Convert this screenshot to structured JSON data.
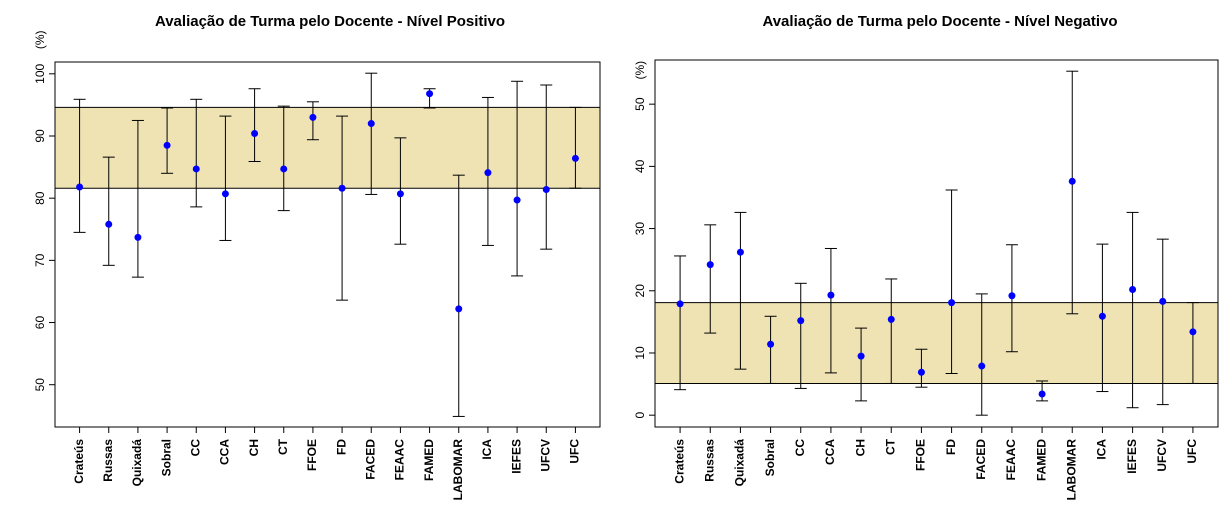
{
  "chart_data": [
    {
      "type": "errorbar",
      "title": "Avaliação de Turma pelo Docente - Nível Positivo",
      "ylabel": "(%)",
      "categories": [
        "Crateús",
        "Russas",
        "Quixadá",
        "Sobral",
        "CC",
        "CCA",
        "CH",
        "CT",
        "FFOE",
        "FD",
        "FACED",
        "FEAAC",
        "FAMED",
        "LABOMAR",
        "ICA",
        "IEFES",
        "UFCV",
        "UFC"
      ],
      "values": [
        81.8,
        75.8,
        73.7,
        88.5,
        84.7,
        80.7,
        90.4,
        84.7,
        93.0,
        81.6,
        92.0,
        80.7,
        96.8,
        62.2,
        84.1,
        79.7,
        81.4,
        86.4
      ],
      "lower": [
        74.5,
        69.2,
        67.3,
        84.0,
        78.6,
        73.2,
        85.9,
        78.0,
        89.4,
        63.6,
        80.6,
        72.6,
        94.5,
        44.9,
        72.4,
        67.5,
        71.8,
        81.6
      ],
      "upper": [
        95.9,
        86.6,
        92.5,
        94.5,
        95.9,
        93.2,
        97.6,
        94.8,
        95.5,
        93.2,
        100.1,
        89.7,
        97.6,
        83.7,
        96.2,
        98.8,
        98.2,
        94.6
      ],
      "band": [
        81.6,
        94.6
      ],
      "band_color": "#efe3b4",
      "color": "#0000ff",
      "ylim": [
        43.2,
        101.9
      ],
      "yticks": [
        50,
        60,
        70,
        80,
        90,
        100
      ]
    },
    {
      "type": "errorbar",
      "title": "Avaliação de Turma pelo Docente - Nível Negativo",
      "ylabel": "(%)",
      "categories": [
        "Crateús",
        "Russas",
        "Quixadá",
        "Sobral",
        "CC",
        "CCA",
        "CH",
        "CT",
        "FFOE",
        "FD",
        "FACED",
        "FEAAC",
        "FAMED",
        "LABOMAR",
        "ICA",
        "IEFES",
        "UFCV",
        "UFC"
      ],
      "values": [
        17.9,
        24.2,
        26.2,
        11.4,
        15.2,
        19.3,
        9.5,
        15.4,
        6.9,
        18.1,
        7.9,
        19.2,
        3.4,
        37.6,
        15.9,
        20.2,
        18.3,
        13.4
      ],
      "lower": [
        4.1,
        13.2,
        7.4,
        5.1,
        4.3,
        6.8,
        2.3,
        5.1,
        4.5,
        6.7,
        0.0,
        10.2,
        2.3,
        16.3,
        3.8,
        1.2,
        1.7,
        5.1
      ],
      "upper": [
        25.6,
        30.6,
        32.6,
        15.9,
        21.2,
        26.8,
        14.0,
        21.9,
        10.6,
        36.2,
        19.5,
        27.4,
        5.5,
        55.3,
        27.5,
        32.6,
        28.3,
        18.1
      ],
      "band": [
        5.1,
        18.1
      ],
      "band_color": "#efe3b4",
      "color": "#0000ff",
      "ylim": [
        -1.9,
        57.1
      ],
      "yticks": [
        0,
        10,
        20,
        30,
        40,
        50
      ]
    }
  ]
}
